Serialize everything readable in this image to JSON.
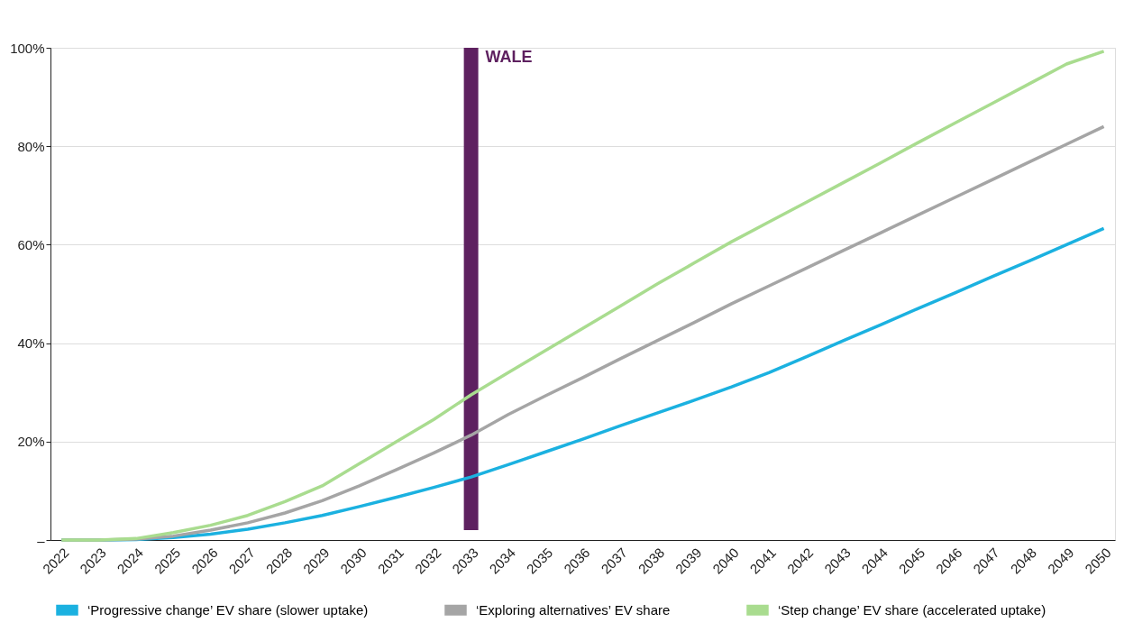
{
  "chart_data": {
    "type": "line",
    "categories": [
      "2022",
      "2023",
      "2024",
      "2025",
      "2026",
      "2027",
      "2028",
      "2029",
      "2030",
      "2031",
      "2032",
      "2033",
      "2034",
      "2035",
      "2036",
      "2037",
      "2038",
      "2039",
      "2040",
      "2041",
      "2042",
      "2043",
      "2044",
      "2045",
      "2046",
      "2047",
      "2048",
      "2049",
      "2050"
    ],
    "series": [
      {
        "name": "‘Progressive change’ EV share (slower uptake)",
        "color": "#1bb1e0",
        "values": [
          0,
          0,
          0.1,
          0.5,
          1.2,
          2.2,
          3.5,
          5,
          6.8,
          8.7,
          10.7,
          12.8,
          15.3,
          17.9,
          20.5,
          23.2,
          25.8,
          28.4,
          31.1,
          34,
          37.2,
          40.5,
          43.7,
          47,
          50.2,
          53.5,
          56.7,
          60,
          63.3
        ]
      },
      {
        "name": "‘Exploring alternatives’ EV share",
        "color": "#a5a5a5",
        "values": [
          0,
          0,
          0.2,
          0.8,
          2,
          3.5,
          5.5,
          8,
          11,
          14.3,
          17.7,
          21.3,
          25.5,
          29.3,
          33,
          36.8,
          40.5,
          44.2,
          48,
          51.6,
          55.2,
          58.8,
          62.4,
          66,
          69.6,
          73.2,
          76.8,
          80.4,
          84
        ]
      },
      {
        "name": "‘Step change’ EV share (accelerated uptake)",
        "color": "#a9dc8f",
        "values": [
          0,
          0,
          0.3,
          1.5,
          3,
          5,
          7.8,
          11,
          15.5,
          20,
          24.5,
          29.5,
          34,
          38.5,
          43,
          47.5,
          52,
          56.3,
          60.6,
          64.6,
          68.6,
          72.6,
          76.6,
          80.7,
          84.7,
          88.7,
          92.7,
          96.7,
          99.3
        ]
      }
    ],
    "ylim": [
      0,
      100
    ],
    "yticks": [
      {
        "value": 0,
        "label": "–"
      },
      {
        "value": 20,
        "label": "20%"
      },
      {
        "value": 40,
        "label": "40%"
      },
      {
        "value": 60,
        "label": "60%"
      },
      {
        "value": 80,
        "label": "80%"
      },
      {
        "value": 100,
        "label": "100%"
      }
    ],
    "grid": "y",
    "legend": "bottom",
    "marker": "none",
    "line_style": "solid",
    "ref_lines": [
      {
        "axis": "x",
        "value": "2033",
        "label": "WALE",
        "color": "#5e2160"
      }
    ]
  }
}
